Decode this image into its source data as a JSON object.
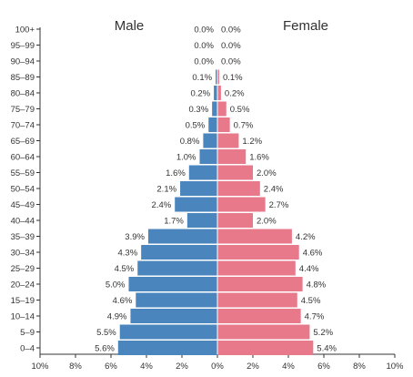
{
  "chart_data": {
    "type": "bar",
    "orientation": "horizontal",
    "layout": "population-pyramid",
    "categories": [
      "0–4",
      "5–9",
      "10–14",
      "15–19",
      "20–24",
      "25–29",
      "30–34",
      "35–39",
      "40–44",
      "45–49",
      "50–54",
      "55–59",
      "60–64",
      "65–69",
      "70–74",
      "75–79",
      "80–84",
      "85–89",
      "90–94",
      "95–99",
      "100+"
    ],
    "series": [
      {
        "name": "Male",
        "color": "#4a86bd",
        "values": [
          5.6,
          5.5,
          4.9,
          4.6,
          5.0,
          4.5,
          4.3,
          3.9,
          1.7,
          2.4,
          2.1,
          1.6,
          1.0,
          0.8,
          0.5,
          0.3,
          0.2,
          0.1,
          0.0,
          0.0,
          0.0
        ],
        "labels": [
          "5.6%",
          "5.5%",
          "4.9%",
          "4.6%",
          "5.0%",
          "4.5%",
          "4.3%",
          "3.9%",
          "1.7%",
          "2.4%",
          "2.1%",
          "1.6%",
          "1.0%",
          "0.8%",
          "0.5%",
          "0.3%",
          "0.2%",
          "0.1%",
          "0.0%",
          "0.0%",
          "0.0%"
        ]
      },
      {
        "name": "Female",
        "color": "#e8798a",
        "values": [
          5.4,
          5.2,
          4.7,
          4.5,
          4.8,
          4.4,
          4.6,
          4.2,
          2.0,
          2.7,
          2.4,
          2.0,
          1.6,
          1.2,
          0.7,
          0.5,
          0.2,
          0.1,
          0.0,
          0.0,
          0.0
        ],
        "labels": [
          "5.4%",
          "5.2%",
          "4.7%",
          "4.5%",
          "4.8%",
          "4.4%",
          "4.6%",
          "4.2%",
          "2.0%",
          "2.7%",
          "2.4%",
          "2.0%",
          "1.6%",
          "1.2%",
          "0.7%",
          "0.5%",
          "0.2%",
          "0.1%",
          "0.0%",
          "0.0%",
          "0.0%"
        ]
      }
    ],
    "x_ticks": [
      "10%",
      "8%",
      "6%",
      "4%",
      "2%",
      "0%",
      "2%",
      "4%",
      "6%",
      "8%",
      "10%"
    ],
    "xlim": [
      -10,
      10
    ],
    "grid": false
  }
}
